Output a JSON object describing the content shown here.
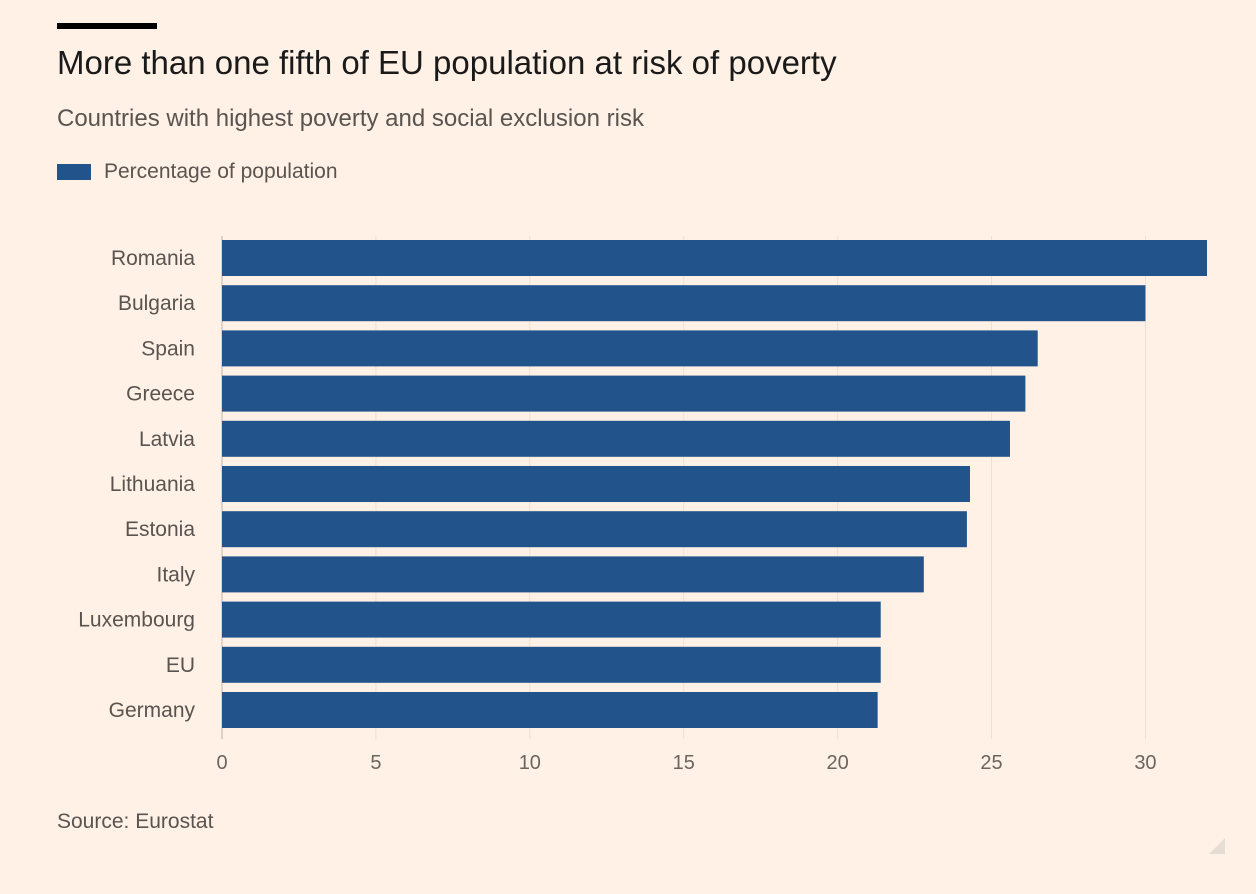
{
  "chart_data": {
    "type": "bar",
    "orientation": "horizontal",
    "title": "More than one fifth of EU population at risk of poverty",
    "subtitle": "Countries with highest poverty and social exclusion risk",
    "categories": [
      "Romania",
      "Bulgaria",
      "Spain",
      "Greece",
      "Latvia",
      "Lithuania",
      "Estonia",
      "Italy",
      "Luxembourg",
      "EU",
      "Germany"
    ],
    "series": [
      {
        "name": "Percentage of population",
        "values": [
          32.0,
          30.0,
          26.5,
          26.1,
          25.6,
          24.3,
          24.2,
          22.8,
          21.4,
          21.4,
          21.3
        ]
      }
    ],
    "xlim": [
      0,
      32
    ],
    "xticks": [
      0,
      5,
      10,
      15,
      20,
      25,
      30
    ],
    "xlabel": "",
    "ylabel": "",
    "grid": "vertical",
    "legend": "top-left",
    "source": "Source: Eurostat"
  },
  "colors": {
    "bar": "#22548b",
    "background": "#fff1e5",
    "title_rule": "#000000"
  }
}
